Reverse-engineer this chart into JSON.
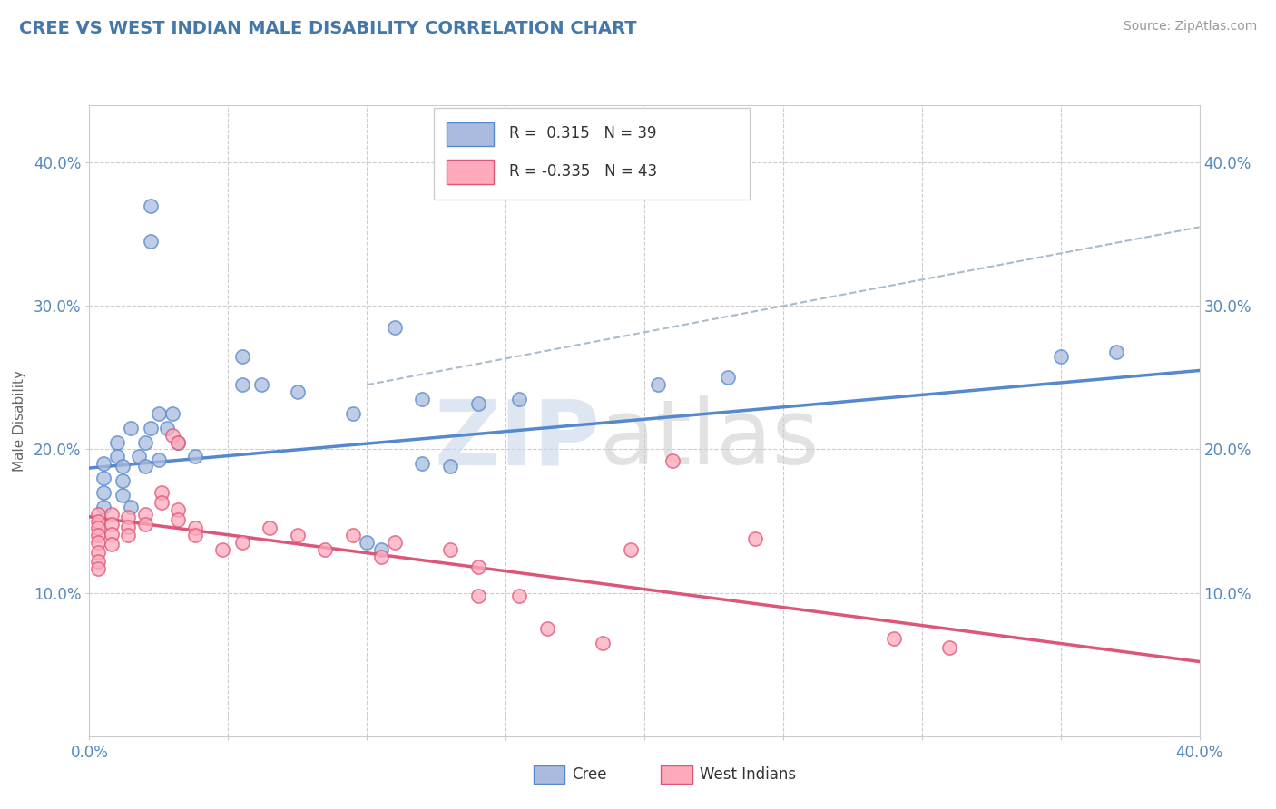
{
  "title": "CREE VS WEST INDIAN MALE DISABILITY CORRELATION CHART",
  "source": "Source: ZipAtlas.com",
  "ylabel": "Male Disability",
  "xlim": [
    0.0,
    0.4
  ],
  "ylim": [
    0.0,
    0.44
  ],
  "cree_color": "#5588cc",
  "cree_fill": "#aabbdd",
  "west_indian_color": "#dd5577",
  "west_indian_fill": "#ffaabb",
  "grid_color": "#cccccc",
  "background_color": "#ffffff",
  "title_color": "#4477aa",
  "axis_color": "#5588bb",
  "cree_line": [
    [
      0.0,
      0.187
    ],
    [
      0.4,
      0.255
    ]
  ],
  "wi_line": [
    [
      0.0,
      0.153
    ],
    [
      0.4,
      0.052
    ]
  ],
  "dash_line": [
    [
      0.1,
      0.245
    ],
    [
      0.4,
      0.355
    ]
  ],
  "cree_scatter": [
    [
      0.022,
      0.37
    ],
    [
      0.022,
      0.345
    ],
    [
      0.055,
      0.265
    ],
    [
      0.055,
      0.245
    ],
    [
      0.025,
      0.225
    ],
    [
      0.03,
      0.225
    ],
    [
      0.015,
      0.215
    ],
    [
      0.022,
      0.215
    ],
    [
      0.028,
      0.215
    ],
    [
      0.01,
      0.205
    ],
    [
      0.02,
      0.205
    ],
    [
      0.032,
      0.205
    ],
    [
      0.01,
      0.195
    ],
    [
      0.018,
      0.195
    ],
    [
      0.025,
      0.193
    ],
    [
      0.038,
      0.195
    ],
    [
      0.005,
      0.19
    ],
    [
      0.012,
      0.188
    ],
    [
      0.02,
      0.188
    ],
    [
      0.005,
      0.18
    ],
    [
      0.012,
      0.178
    ],
    [
      0.005,
      0.17
    ],
    [
      0.012,
      0.168
    ],
    [
      0.005,
      0.16
    ],
    [
      0.015,
      0.16
    ],
    [
      0.062,
      0.245
    ],
    [
      0.075,
      0.24
    ],
    [
      0.095,
      0.225
    ],
    [
      0.12,
      0.235
    ],
    [
      0.14,
      0.232
    ],
    [
      0.155,
      0.235
    ],
    [
      0.205,
      0.245
    ],
    [
      0.23,
      0.25
    ],
    [
      0.12,
      0.19
    ],
    [
      0.13,
      0.188
    ],
    [
      0.11,
      0.285
    ],
    [
      0.35,
      0.265
    ],
    [
      0.37,
      0.268
    ],
    [
      0.1,
      0.135
    ],
    [
      0.105,
      0.13
    ]
  ],
  "wi_scatter": [
    [
      0.003,
      0.155
    ],
    [
      0.003,
      0.15
    ],
    [
      0.003,
      0.145
    ],
    [
      0.003,
      0.14
    ],
    [
      0.003,
      0.135
    ],
    [
      0.003,
      0.128
    ],
    [
      0.003,
      0.122
    ],
    [
      0.003,
      0.117
    ],
    [
      0.008,
      0.155
    ],
    [
      0.008,
      0.148
    ],
    [
      0.008,
      0.141
    ],
    [
      0.008,
      0.134
    ],
    [
      0.014,
      0.153
    ],
    [
      0.014,
      0.146
    ],
    [
      0.014,
      0.14
    ],
    [
      0.02,
      0.155
    ],
    [
      0.02,
      0.148
    ],
    [
      0.026,
      0.17
    ],
    [
      0.026,
      0.163
    ],
    [
      0.032,
      0.158
    ],
    [
      0.032,
      0.151
    ],
    [
      0.038,
      0.145
    ],
    [
      0.038,
      0.14
    ],
    [
      0.03,
      0.21
    ],
    [
      0.032,
      0.205
    ],
    [
      0.048,
      0.13
    ],
    [
      0.055,
      0.135
    ],
    [
      0.065,
      0.145
    ],
    [
      0.075,
      0.14
    ],
    [
      0.085,
      0.13
    ],
    [
      0.095,
      0.14
    ],
    [
      0.105,
      0.125
    ],
    [
      0.11,
      0.135
    ],
    [
      0.13,
      0.13
    ],
    [
      0.14,
      0.118
    ],
    [
      0.14,
      0.098
    ],
    [
      0.155,
      0.098
    ],
    [
      0.165,
      0.075
    ],
    [
      0.185,
      0.065
    ],
    [
      0.195,
      0.13
    ],
    [
      0.21,
      0.192
    ],
    [
      0.24,
      0.138
    ],
    [
      0.29,
      0.068
    ],
    [
      0.31,
      0.062
    ]
  ]
}
